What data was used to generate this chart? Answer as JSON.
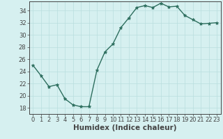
{
  "x": [
    0,
    1,
    2,
    3,
    4,
    5,
    6,
    7,
    8,
    9,
    10,
    11,
    12,
    13,
    14,
    15,
    16,
    17,
    18,
    19,
    20,
    21,
    22,
    23
  ],
  "y": [
    25.0,
    23.3,
    21.5,
    21.8,
    19.5,
    18.5,
    18.2,
    18.2,
    24.2,
    27.2,
    28.5,
    31.2,
    32.8,
    34.5,
    34.8,
    34.5,
    35.2,
    34.6,
    34.7,
    33.2,
    32.5,
    31.8,
    31.9,
    32.0
  ],
  "xlabel": "Humidex (Indice chaleur)",
  "ylim": [
    17,
    35.5
  ],
  "xlim": [
    -0.5,
    23.5
  ],
  "yticks": [
    18,
    20,
    22,
    24,
    26,
    28,
    30,
    32,
    34
  ],
  "xticks": [
    0,
    1,
    2,
    3,
    4,
    5,
    6,
    7,
    8,
    9,
    10,
    11,
    12,
    13,
    14,
    15,
    16,
    17,
    18,
    19,
    20,
    21,
    22,
    23
  ],
  "line_color": "#2d6e5e",
  "marker": "*",
  "marker_size": 3.5,
  "bg_color": "#d6f0f0",
  "grid_color": "#b8dede",
  "axis_color": "#444444",
  "tick_label_fontsize": 6.0,
  "xlabel_fontsize": 7.5,
  "line_width": 1.0
}
